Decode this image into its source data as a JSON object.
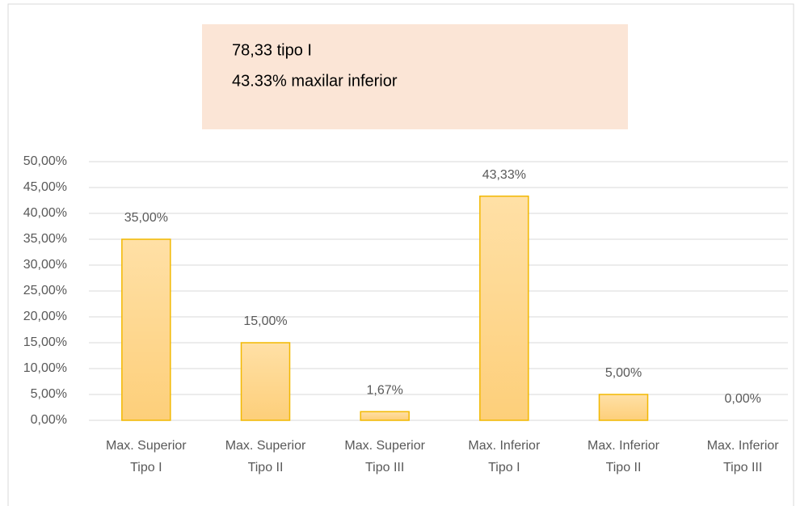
{
  "chart_data": {
    "type": "bar",
    "annotations": [
      "78,33 tipo I",
      "43.33% maxilar inferior"
    ],
    "categories": [
      [
        "Max. Superior",
        "Tipo I"
      ],
      [
        "Max. Superior",
        "Tipo II"
      ],
      [
        "Max. Superior",
        "Tipo III"
      ],
      [
        "Max. Inferior",
        "Tipo I"
      ],
      [
        "Max. Inferior",
        "Tipo II"
      ],
      [
        "Max. Inferior",
        "Tipo III"
      ]
    ],
    "values": [
      35,
      15,
      1.67,
      43.33,
      5,
      0
    ],
    "value_labels": [
      "35,00%",
      "15,00%",
      "1,67%",
      "43,33%",
      "5,00%",
      "0,00%"
    ],
    "color": "#fdd385",
    "edge_color": "#f2b800",
    "ylim": [
      0,
      50
    ],
    "yticks": [
      {
        "value": 0,
        "label": "0,00%"
      },
      {
        "value": 5,
        "label": "5,00%"
      },
      {
        "value": 10,
        "label": "10,00%"
      },
      {
        "value": 15,
        "label": "15,00%"
      },
      {
        "value": 20,
        "label": "20,00%"
      },
      {
        "value": 25,
        "label": "25,00%"
      },
      {
        "value": 30,
        "label": "30,00%"
      },
      {
        "value": 35,
        "label": "35,00%"
      },
      {
        "value": 40,
        "label": "40,00%"
      },
      {
        "value": 45,
        "label": "45,00%"
      },
      {
        "value": 50,
        "label": "50,00%"
      }
    ],
    "grid": true
  }
}
